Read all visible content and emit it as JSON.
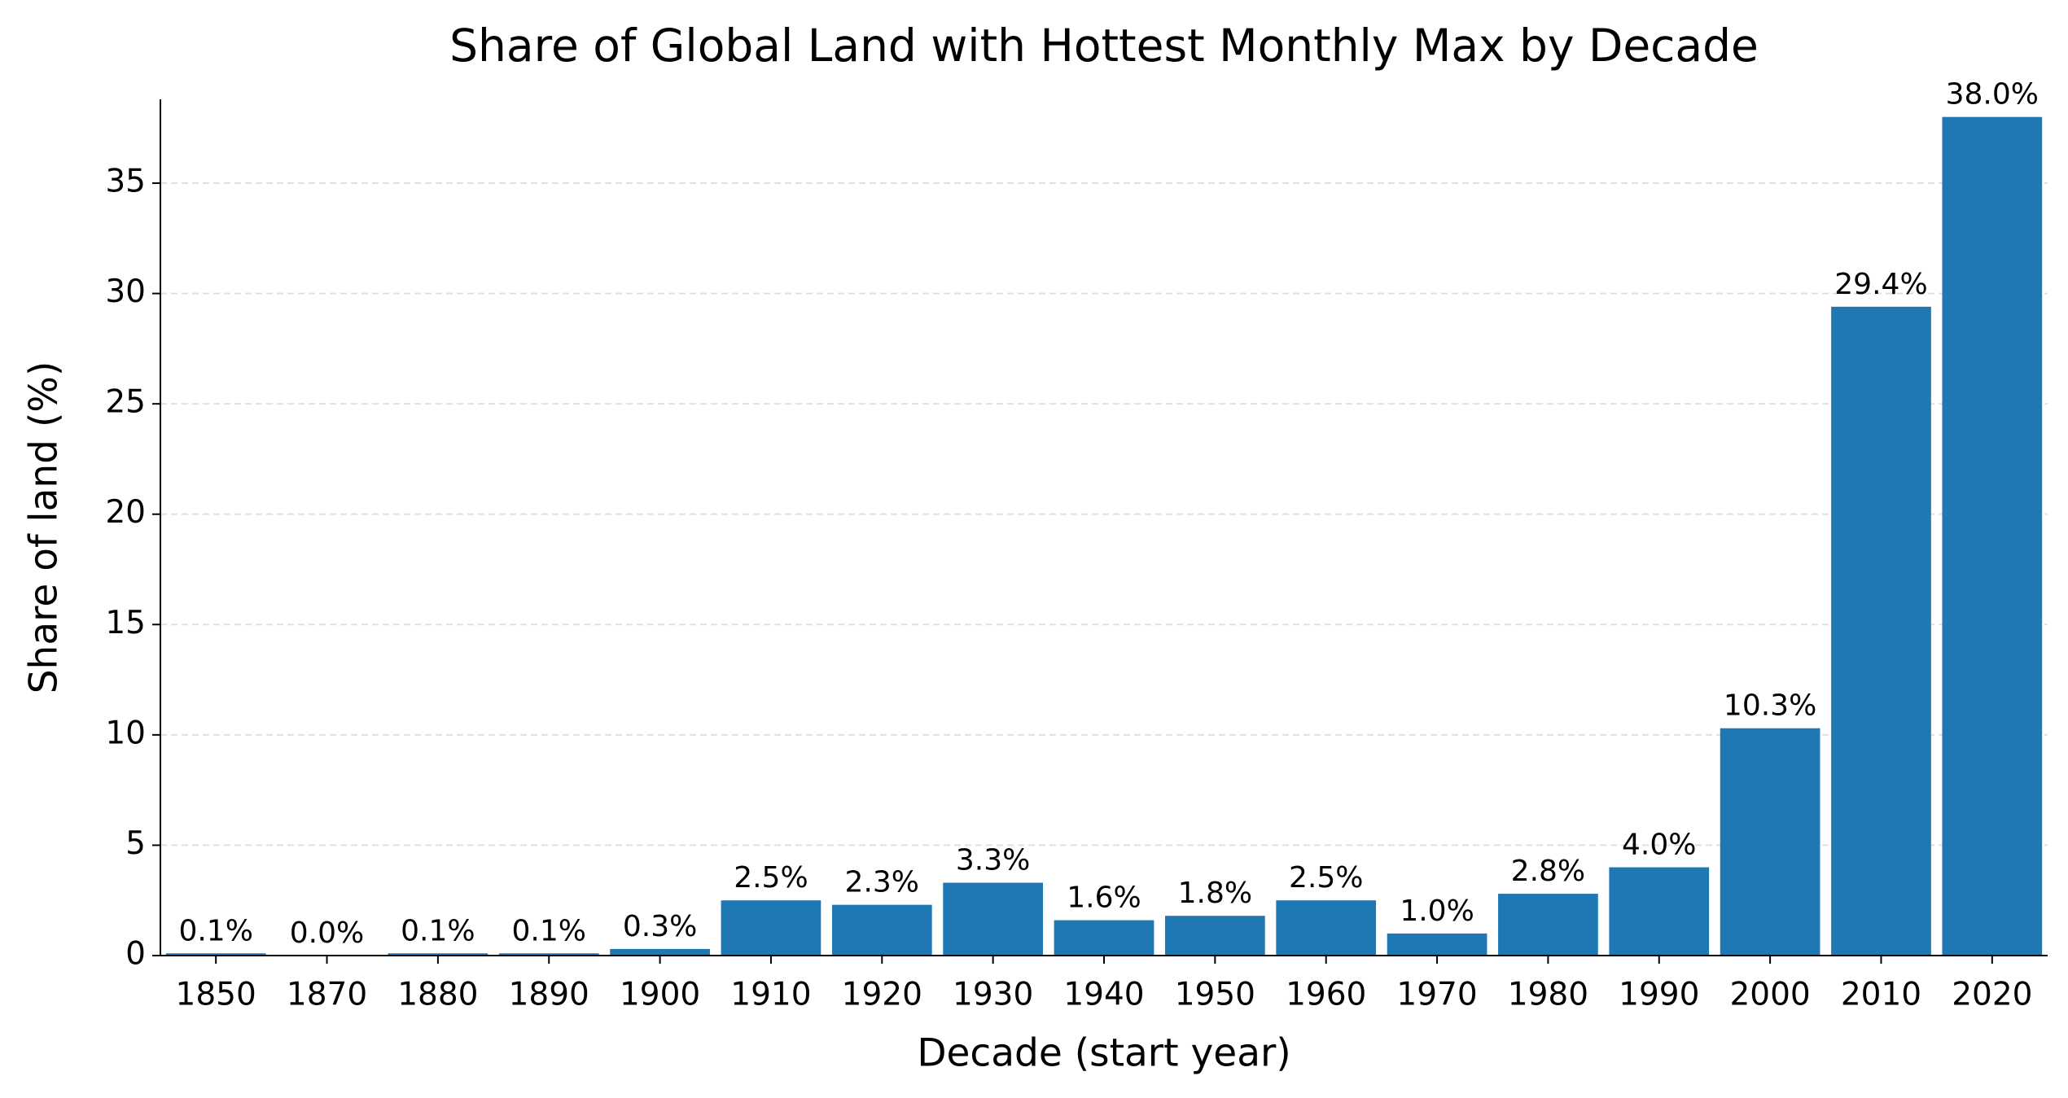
{
  "chart_data": {
    "type": "bar",
    "title": "Share of Global Land with Hottest Monthly Max by Decade",
    "x_label": "Decade (start year)",
    "y_label": "Share of land (%)",
    "categories": [
      "1850",
      "1870",
      "1880",
      "1890",
      "1900",
      "1910",
      "1920",
      "1930",
      "1940",
      "1950",
      "1960",
      "1970",
      "1980",
      "1990",
      "2000",
      "2010",
      "2020"
    ],
    "values": [
      0.1,
      0.0,
      0.1,
      0.1,
      0.3,
      2.5,
      2.3,
      3.3,
      1.6,
      1.8,
      2.5,
      1.0,
      2.8,
      4.0,
      10.3,
      29.4,
      38.0
    ],
    "value_labels": [
      "0.1%",
      "0.0%",
      "0.1%",
      "0.1%",
      "0.3%",
      "2.5%",
      "2.3%",
      "3.3%",
      "1.6%",
      "1.8%",
      "2.5%",
      "1.0%",
      "2.8%",
      "4.0%",
      "10.3%",
      "29.4%",
      "38.0%"
    ],
    "color": "#1f77b4",
    "ylim": [
      0,
      38.8
    ],
    "yticks": [
      0,
      5,
      10,
      15,
      20,
      25,
      30,
      35
    ],
    "grid": true
  }
}
